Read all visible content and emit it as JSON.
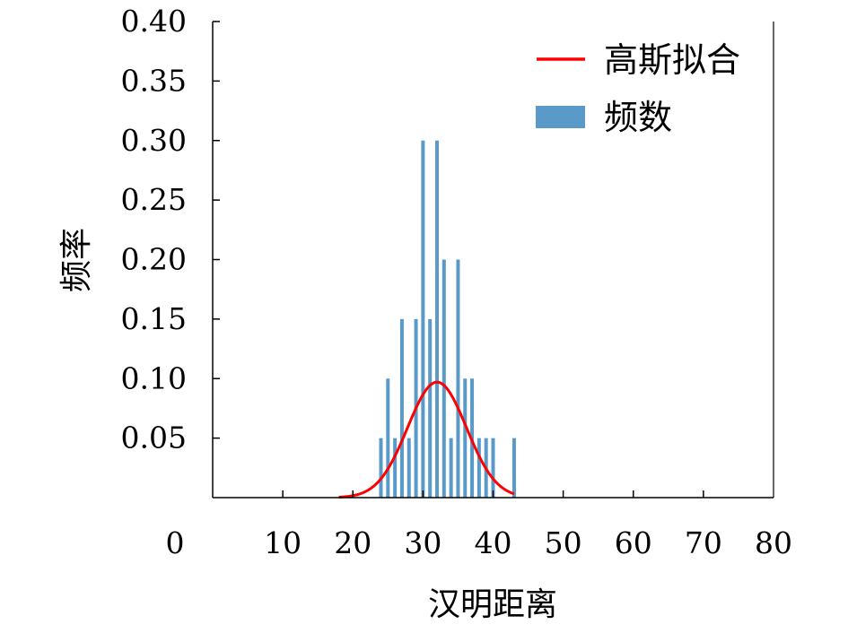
{
  "chart_data": {
    "type": "bar",
    "xlabel": "汉明距离",
    "ylabel": "频率",
    "xlim": [
      0,
      80
    ],
    "ylim": [
      0,
      0.4
    ],
    "xticks": [
      "0",
      "10",
      "20",
      "30",
      "40",
      "50",
      "60",
      "70",
      "80"
    ],
    "yticks": [
      "0.05",
      "0.10",
      "0.15",
      "0.20",
      "0.25",
      "0.30",
      "0.35",
      "0.40"
    ],
    "legend_position": "top-right",
    "series": [
      {
        "name": "频数",
        "kind": "bar",
        "color": "#5a9ac9",
        "x": [
          24,
          25,
          26,
          27,
          28,
          29,
          30,
          31,
          32,
          33,
          34,
          35,
          36,
          37,
          38,
          39,
          40,
          43
        ],
        "values": [
          0.05,
          0.1,
          0.05,
          0.15,
          0.05,
          0.15,
          0.3,
          0.15,
          0.3,
          0.2,
          0.05,
          0.2,
          0.1,
          0.1,
          0.05,
          0.05,
          0.05,
          0.05
        ]
      },
      {
        "name": "高斯拟合",
        "kind": "line",
        "color": "#ff0000",
        "fit": {
          "amplitude": 0.097,
          "mean": 32,
          "sigma": 4.2,
          "x_range": [
            18,
            43
          ]
        }
      }
    ]
  }
}
